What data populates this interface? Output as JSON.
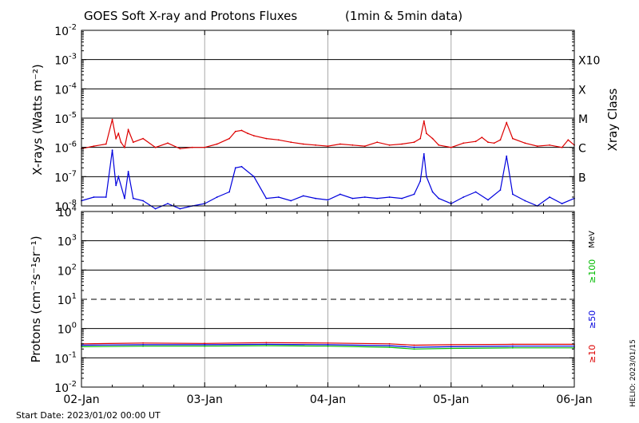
{
  "chart_data": [
    {
      "type": "line",
      "title": "GOES Soft X-ray and Protons Fluxes",
      "subtitle": "(1min & 5min data)",
      "ylabel": "X-rays (Watts m⁻²)",
      "ylabel_right": "Xray Class",
      "y_scale": "log",
      "ylim": [
        1e-08,
        0.01
      ],
      "y_ticks": [
        {
          "base": "10",
          "exp": "-2"
        },
        {
          "base": "10",
          "exp": "-3"
        },
        {
          "base": "10",
          "exp": "-4"
        },
        {
          "base": "10",
          "exp": "-5"
        },
        {
          "base": "10",
          "exp": "-6"
        },
        {
          "base": "10",
          "exp": "-7"
        },
        {
          "base": "10",
          "exp": "-8"
        }
      ],
      "class_labels": [
        {
          "label": "X10",
          "value": 0.001
        },
        {
          "label": "X",
          "value": 0.0001
        },
        {
          "label": "M",
          "value": 1e-05
        },
        {
          "label": "C",
          "value": 1e-06
        },
        {
          "label": "B",
          "value": 1e-07
        }
      ],
      "x_ticks": [
        "02-Jan",
        "03-Jan",
        "04-Jan",
        "05-Jan",
        "06-Jan"
      ],
      "xlim_days": [
        0,
        4
      ],
      "grid": true,
      "series": [
        {
          "color": "#dd0000",
          "x": [
            0,
            0.1,
            0.2,
            0.25,
            0.28,
            0.3,
            0.32,
            0.35,
            0.38,
            0.42,
            0.5,
            0.6,
            0.7,
            0.8,
            0.9,
            1.0,
            1.1,
            1.2,
            1.25,
            1.3,
            1.35,
            1.4,
            1.5,
            1.6,
            1.7,
            1.8,
            1.9,
            2.0,
            2.1,
            2.2,
            2.3,
            2.4,
            2.5,
            2.6,
            2.7,
            2.75,
            2.78,
            2.8,
            2.85,
            2.9,
            3.0,
            3.1,
            3.2,
            3.25,
            3.3,
            3.35,
            3.4,
            3.45,
            3.5,
            3.6,
            3.7,
            3.8,
            3.9,
            3.95,
            4.0
          ],
          "values": [
            9e-07,
            1.1e-06,
            1.3e-06,
            9e-06,
            2e-06,
            3e-06,
            1.5e-06,
            1e-06,
            4e-06,
            1.5e-06,
            2e-06,
            1e-06,
            1.4e-06,
            9e-07,
            1e-06,
            1e-06,
            1.3e-06,
            2e-06,
            3.5e-06,
            3.8e-06,
            3e-06,
            2.5e-06,
            2e-06,
            1.8e-06,
            1.5e-06,
            1.3e-06,
            1.2e-06,
            1.1e-06,
            1.3e-06,
            1.2e-06,
            1.1e-06,
            1.5e-06,
            1.2e-06,
            1.3e-06,
            1.5e-06,
            2e-06,
            8e-06,
            3e-06,
            2e-06,
            1.2e-06,
            1e-06,
            1.4e-06,
            1.6e-06,
            2.2e-06,
            1.5e-06,
            1.4e-06,
            1.8e-06,
            7e-06,
            2e-06,
            1.4e-06,
            1.1e-06,
            1.2e-06,
            1e-06,
            1.8e-06,
            1.2e-06
          ]
        },
        {
          "color": "#0000dd",
          "x": [
            0,
            0.1,
            0.2,
            0.25,
            0.28,
            0.3,
            0.35,
            0.38,
            0.42,
            0.5,
            0.6,
            0.7,
            0.8,
            0.9,
            1.0,
            1.1,
            1.2,
            1.25,
            1.3,
            1.4,
            1.5,
            1.6,
            1.7,
            1.8,
            1.9,
            2.0,
            2.1,
            2.2,
            2.3,
            2.4,
            2.5,
            2.6,
            2.7,
            2.75,
            2.78,
            2.8,
            2.85,
            2.9,
            3.0,
            3.1,
            3.2,
            3.3,
            3.4,
            3.45,
            3.5,
            3.6,
            3.7,
            3.8,
            3.9,
            4.0
          ],
          "values": [
            1.5e-08,
            2e-08,
            2e-08,
            8e-07,
            5e-08,
            1e-07,
            1.8e-08,
            1.5e-07,
            1.8e-08,
            1.5e-08,
            8e-09,
            1.2e-08,
            8e-09,
            1e-08,
            1.2e-08,
            2e-08,
            3e-08,
            2e-07,
            2.2e-07,
            1e-07,
            1.8e-08,
            2e-08,
            1.5e-08,
            2.2e-08,
            1.8e-08,
            1.6e-08,
            2.5e-08,
            1.8e-08,
            2e-08,
            1.8e-08,
            2e-08,
            1.8e-08,
            2.5e-08,
            7e-08,
            6e-07,
            1e-07,
            3e-08,
            1.8e-08,
            1.2e-08,
            2e-08,
            3e-08,
            1.6e-08,
            3.5e-08,
            5e-07,
            2.5e-08,
            1.5e-08,
            1e-08,
            2e-08,
            1.2e-08,
            1.8e-08
          ]
        }
      ]
    },
    {
      "type": "line",
      "ylabel": "Protons (cm⁻²s⁻¹sr⁻¹)",
      "y_scale": "log",
      "ylim": [
        0.01,
        10000.0
      ],
      "y_ticks": [
        {
          "base": "10",
          "exp": "4"
        },
        {
          "base": "10",
          "exp": "3"
        },
        {
          "base": "10",
          "exp": "2"
        },
        {
          "base": "10",
          "exp": "1"
        },
        {
          "base": "10",
          "exp": "0"
        },
        {
          "base": "10",
          "exp": "-1"
        },
        {
          "base": "10",
          "exp": "-2"
        }
      ],
      "threshold": 10,
      "unit_label": "MeV",
      "x_ticks": [
        "02-Jan",
        "03-Jan",
        "04-Jan",
        "05-Jan",
        "06-Jan"
      ],
      "xlim_days": [
        0,
        4
      ],
      "grid": true,
      "series": [
        {
          "name": "≥10",
          "color": "#dd0000",
          "x": [
            0,
            0.5,
            1,
            1.5,
            2,
            2.5,
            2.7,
            3,
            3.5,
            4
          ],
          "values": [
            0.3,
            0.32,
            0.31,
            0.33,
            0.32,
            0.3,
            0.27,
            0.28,
            0.29,
            0.29
          ]
        },
        {
          "name": "≥50",
          "color": "#0000dd",
          "x": [
            0,
            0.5,
            1,
            1.5,
            2,
            2.5,
            2.7,
            3,
            3.5,
            4
          ],
          "values": [
            0.27,
            0.28,
            0.28,
            0.29,
            0.28,
            0.26,
            0.23,
            0.24,
            0.25,
            0.25
          ]
        },
        {
          "name": "≥100",
          "color": "#00bb00",
          "x": [
            0,
            0.5,
            1,
            1.5,
            2,
            2.5,
            2.7,
            3,
            3.5,
            4
          ],
          "values": [
            0.24,
            0.25,
            0.25,
            0.26,
            0.25,
            0.23,
            0.2,
            0.21,
            0.22,
            0.22
          ]
        }
      ]
    }
  ],
  "footer": {
    "start_date": "Start Date: 2023/01/02 00:00 UT",
    "credit": "HELIO: 2023/01/15"
  }
}
